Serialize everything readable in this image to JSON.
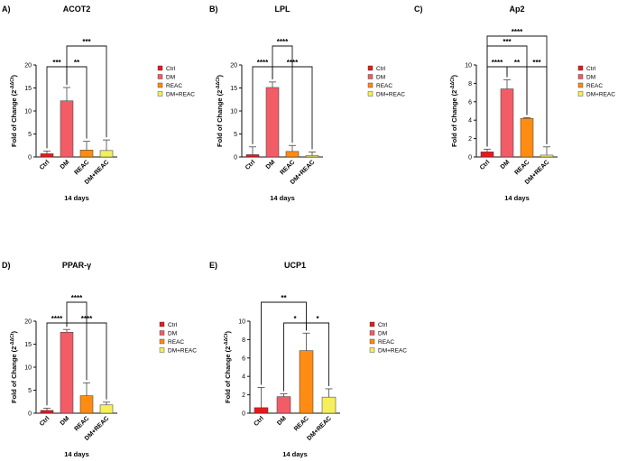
{
  "figure": {
    "legend_title": "",
    "colors": {
      "Ctrl": "#e8191c",
      "DM": "#f25c66",
      "REAC": "#ff8c12",
      "DM+REAC": "#f4ef5a"
    }
  },
  "chart_data": [
    {
      "panel_label": "A)",
      "title": "ACOT2",
      "type": "bar",
      "categories": [
        "Ctrl",
        "DM",
        "REAC",
        "DM+REAC"
      ],
      "values": [
        0.7,
        12.2,
        1.5,
        1.4
      ],
      "errors": [
        0.6,
        2.9,
        1.9,
        2.3
      ],
      "xlabel": "14 days",
      "ylabel_main": "Fold of Change (2",
      "ylabel_sup": "-ΔΔCt",
      "ylabel_end": ")",
      "ylim": [
        0,
        20
      ],
      "yticks": [
        "0",
        "5",
        "10",
        "15",
        "20"
      ],
      "legend": [
        "Ctrl",
        "DM",
        "REAC",
        "DM+REAC"
      ],
      "brackets": [
        {
          "from": 0,
          "to": 1,
          "label": "***",
          "level": 0
        },
        {
          "from": 1,
          "to": 2,
          "label": "**",
          "level": 0
        },
        {
          "from": 1,
          "to": 3,
          "label": "***",
          "level": 1
        }
      ]
    },
    {
      "panel_label": "B)",
      "title": "LPL",
      "type": "bar",
      "categories": [
        "Ctrl",
        "DM",
        "REAC",
        "DM+REAC"
      ],
      "values": [
        0.5,
        15.1,
        1.2,
        0.3
      ],
      "errors": [
        1.7,
        1.2,
        1.3,
        0.8
      ],
      "xlabel": "14 days",
      "ylabel_main": "Fold of Change (2",
      "ylabel_sup": "-ΔΔCt",
      "ylabel_end": ")",
      "ylim": [
        0,
        20
      ],
      "yticks": [
        "0",
        "5",
        "10",
        "15",
        "20"
      ],
      "legend": [
        "Ctrl",
        "DM",
        "REAC",
        "DM+REAC"
      ],
      "brackets": [
        {
          "from": 0,
          "to": 1,
          "label": "****",
          "level": 0
        },
        {
          "from": 1,
          "to": 3,
          "label": "****",
          "level": 0
        },
        {
          "from": 1,
          "to": 2,
          "label": "****",
          "level": 1
        }
      ]
    },
    {
      "panel_label": "C)",
      "title": "Ap2",
      "type": "bar",
      "categories": [
        "Ctrl",
        "DM",
        "REAC",
        "DM+REAC"
      ],
      "values": [
        0.55,
        7.4,
        4.2,
        0.2
      ],
      "errors": [
        0.3,
        1.0,
        0.08,
        0.9
      ],
      "xlabel": "14 days",
      "ylabel_main": "Fold of Change (2",
      "ylabel_sup": "-ΔΔCt",
      "ylabel_end": ")",
      "ylim": [
        0,
        10
      ],
      "yticks": [
        "0",
        "2",
        "4",
        "6",
        "8",
        "10"
      ],
      "legend": [
        "Ctrl",
        "DM",
        "REAC",
        "DM+REAC"
      ],
      "brackets": [
        {
          "from": 0,
          "to": 1,
          "label": "****",
          "level": 0
        },
        {
          "from": 1,
          "to": 2,
          "label": "**",
          "level": 0
        },
        {
          "from": 2,
          "to": 3,
          "label": "***",
          "level": 0
        },
        {
          "from": 0,
          "to": 2,
          "label": "***",
          "level": 1
        },
        {
          "from": 0,
          "to": 3,
          "label": "****",
          "level": 2
        }
      ]
    },
    {
      "panel_label": "D)",
      "title": "PPAR-γ",
      "type": "bar",
      "categories": [
        "Ctrl",
        "DM",
        "REAC",
        "DM+REAC"
      ],
      "values": [
        0.6,
        17.6,
        3.8,
        1.8
      ],
      "errors": [
        0.5,
        0.6,
        2.8,
        0.6
      ],
      "xlabel": "14 days",
      "ylabel_main": "Fold of Change (2",
      "ylabel_sup": "-ΔΔCt",
      "ylabel_end": ")",
      "ylim": [
        0,
        20
      ],
      "yticks": [
        "0",
        "5",
        "10",
        "15",
        "20"
      ],
      "legend": [
        "Ctrl",
        "DM",
        "REAC",
        "DM+REAC"
      ],
      "brackets": [
        {
          "from": 0,
          "to": 1,
          "label": "****",
          "level": 0
        },
        {
          "from": 1,
          "to": 3,
          "label": "****",
          "level": 0
        },
        {
          "from": 1,
          "to": 2,
          "label": "****",
          "level": 1
        }
      ]
    },
    {
      "panel_label": "E)",
      "title": "UCP1",
      "type": "bar",
      "categories": [
        "Ctrl",
        "DM",
        "REAC",
        "DM+REAC"
      ],
      "values": [
        0.6,
        1.8,
        6.8,
        1.75
      ],
      "errors": [
        2.2,
        0.3,
        1.9,
        0.9
      ],
      "xlabel": "14 days",
      "ylabel_main": "Fold of Change (2",
      "ylabel_sup": "-ΔΔCt",
      "ylabel_end": ")",
      "ylim": [
        0,
        10
      ],
      "yticks": [
        "0",
        "2",
        "4",
        "6",
        "8",
        "10"
      ],
      "legend": [
        "Ctrl",
        "DM",
        "REAC",
        "DM+REAC"
      ],
      "brackets": [
        {
          "from": 1,
          "to": 2,
          "label": "*",
          "level": 0
        },
        {
          "from": 2,
          "to": 3,
          "label": "*",
          "level": 0
        },
        {
          "from": 0,
          "to": 2,
          "label": "**",
          "level": 1
        }
      ]
    }
  ]
}
